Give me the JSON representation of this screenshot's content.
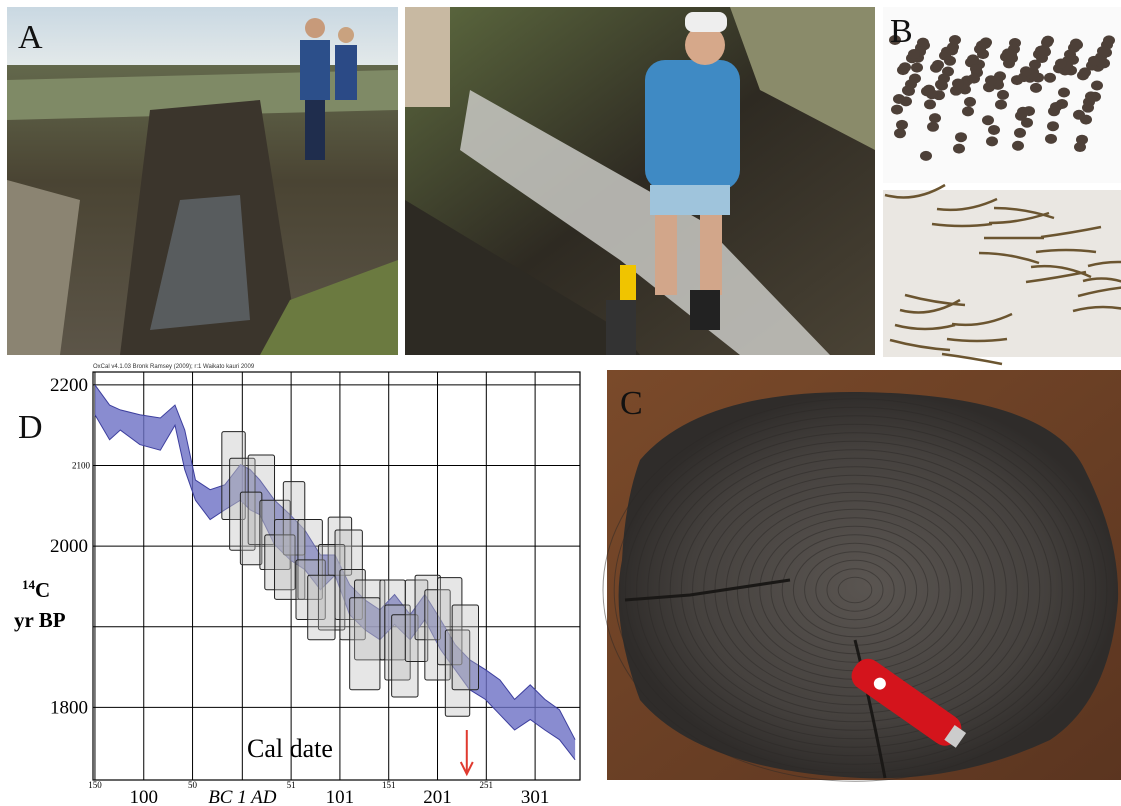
{
  "panel_labels": [
    "A",
    "B",
    "C"
  ],
  "chart_data": {
    "type": "band",
    "panel_label": "D",
    "header": "OxCal v4.1.03 Bronk Ramsey (2009); r:1 Waikato kauri 2009",
    "y_label_sup": "14",
    "y_label_main": "C",
    "y_label_line2": "yr BP",
    "x_label": "Cal date",
    "xlim": [
      -152,
      347
    ],
    "ylim": [
      1710,
      2216
    ],
    "xticks": [
      {
        "value": -150,
        "label": "150"
      },
      {
        "value": -50,
        "label": "50"
      },
      51,
      151,
      251
    ],
    "xticks_major": [
      {
        "value": -100,
        "label": "100"
      },
      {
        "value": 1,
        "label": "BC 1 AD"
      },
      101,
      201,
      301
    ],
    "yticks": [
      1800,
      2000,
      2200
    ],
    "yticks_minor": [
      2100
    ],
    "ygrid_unlabeled": [
      1900
    ],
    "color": "#6b6fc4",
    "band": {
      "x": [
        -150,
        -135,
        -124,
        -104,
        -83,
        -68,
        -58,
        -47,
        -32,
        -17,
        -1,
        9,
        19,
        34,
        50,
        65,
        81,
        96,
        111,
        127,
        142,
        157,
        173,
        188,
        204,
        219,
        234,
        250,
        265,
        280,
        296,
        311,
        326,
        342
      ],
      "upper": [
        2200,
        2175,
        2169,
        2163,
        2159,
        2175,
        2144,
        2082,
        2070,
        2076,
        2101,
        2095,
        2082,
        2057,
        2039,
        2020,
        1989,
        1989,
        1952,
        1933,
        1921,
        1940,
        1915,
        1940,
        1909,
        1878,
        1859,
        1847,
        1834,
        1810,
        1828,
        1810,
        1797,
        1760
      ],
      "lower": [
        2163,
        2132,
        2144,
        2126,
        2119,
        2150,
        2095,
        2057,
        2033,
        2045,
        2057,
        2045,
        2039,
        2002,
        1983,
        1971,
        1946,
        1964,
        1915,
        1896,
        1884,
        1903,
        1884,
        1909,
        1872,
        1847,
        1822,
        1810,
        1791,
        1772,
        1785,
        1772,
        1760,
        1735
      ]
    },
    "boxes": [
      {
        "x": [
          -20,
          4
        ],
        "y": [
          2033,
          2142
        ]
      },
      {
        "x": [
          -12,
          14
        ],
        "y": [
          1995,
          2109
        ]
      },
      {
        "x": [
          7,
          34
        ],
        "y": [
          2002,
          2113
        ]
      },
      {
        "x": [
          -1,
          21
        ],
        "y": [
          1977,
          2067
        ]
      },
      {
        "x": [
          19,
          50
        ],
        "y": [
          1971,
          2057
        ]
      },
      {
        "x": [
          43,
          65
        ],
        "y": [
          1989,
          2080
        ]
      },
      {
        "x": [
          24,
          55
        ],
        "y": [
          1946,
          2014
        ]
      },
      {
        "x": [
          34,
          65
        ],
        "y": [
          1934,
          2033
        ]
      },
      {
        "x": [
          58,
          83
        ],
        "y": [
          1934,
          2033
        ]
      },
      {
        "x": [
          56,
          86
        ],
        "y": [
          1909,
          1983
        ]
      },
      {
        "x": [
          89,
          113
        ],
        "y": [
          1964,
          2036
        ]
      },
      {
        "x": [
          79,
          106
        ],
        "y": [
          1896,
          2002
        ]
      },
      {
        "x": [
          96,
          124
        ],
        "y": [
          1909,
          2020
        ]
      },
      {
        "x": [
          68,
          96
        ],
        "y": [
          1884,
          1964
        ]
      },
      {
        "x": [
          101,
          127
        ],
        "y": [
          1884,
          1971
        ]
      },
      {
        "x": [
          116,
          147
        ],
        "y": [
          1859,
          1958
        ]
      },
      {
        "x": [
          111,
          142
        ],
        "y": [
          1822,
          1936
        ]
      },
      {
        "x": [
          142,
          168
        ],
        "y": [
          1859,
          1958
        ]
      },
      {
        "x": [
          147,
          173
        ],
        "y": [
          1834,
          1927
        ]
      },
      {
        "x": [
          154,
          181
        ],
        "y": [
          1813,
          1915
        ]
      },
      {
        "x": [
          168,
          191
        ],
        "y": [
          1857,
          1958
        ]
      },
      {
        "x": [
          178,
          204
        ],
        "y": [
          1884,
          1964
        ]
      },
      {
        "x": [
          188,
          214
        ],
        "y": [
          1834,
          1946
        ]
      },
      {
        "x": [
          201,
          226
        ],
        "y": [
          1853,
          1961
        ]
      },
      {
        "x": [
          209,
          234
        ],
        "y": [
          1789,
          1896
        ]
      },
      {
        "x": [
          216,
          243
        ],
        "y": [
          1822,
          1927
        ]
      }
    ],
    "arrow_x": 231,
    "arrow_color": "#e03a2f"
  }
}
